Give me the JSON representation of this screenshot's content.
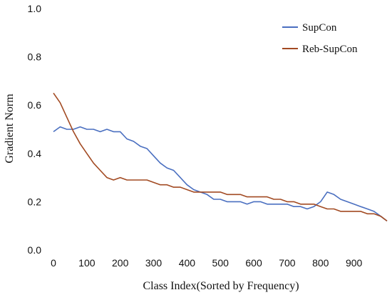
{
  "chart_data": {
    "type": "line",
    "title": "",
    "xlabel": "Class Index(Sorted by Frequency)",
    "ylabel": "Gradient Norm",
    "xlim": [
      0,
      999
    ],
    "ylim": [
      0.0,
      1.0
    ],
    "xticks": [
      0,
      100,
      200,
      300,
      400,
      500,
      600,
      700,
      800,
      900
    ],
    "yticks": [
      0.0,
      0.2,
      0.4,
      0.6,
      0.8,
      1.0
    ],
    "ytick_labels": [
      "0.0",
      "0.2",
      "0.4",
      "0.6",
      "0.8",
      "1.0"
    ],
    "grid": false,
    "legend_position": "top-right",
    "series": [
      {
        "name": "SupCon",
        "color": "#4a6fc0",
        "x": [
          0,
          20,
          40,
          60,
          80,
          100,
          120,
          140,
          160,
          180,
          200,
          220,
          240,
          260,
          280,
          300,
          320,
          340,
          360,
          380,
          400,
          420,
          440,
          460,
          480,
          500,
          520,
          540,
          560,
          580,
          600,
          620,
          640,
          660,
          680,
          700,
          720,
          740,
          760,
          780,
          800,
          820,
          840,
          860,
          880,
          900,
          920,
          940,
          960,
          980,
          999
        ],
        "y": [
          0.49,
          0.51,
          0.5,
          0.5,
          0.51,
          0.5,
          0.5,
          0.49,
          0.5,
          0.49,
          0.49,
          0.46,
          0.45,
          0.43,
          0.42,
          0.39,
          0.36,
          0.34,
          0.33,
          0.3,
          0.27,
          0.25,
          0.24,
          0.23,
          0.21,
          0.21,
          0.2,
          0.2,
          0.2,
          0.19,
          0.2,
          0.2,
          0.19,
          0.19,
          0.19,
          0.19,
          0.18,
          0.18,
          0.17,
          0.18,
          0.2,
          0.24,
          0.23,
          0.21,
          0.2,
          0.19,
          0.18,
          0.17,
          0.16,
          0.14,
          0.12
        ]
      },
      {
        "name": "Reb-SupCon",
        "color": "#a24a22",
        "x": [
          0,
          20,
          40,
          60,
          80,
          100,
          120,
          140,
          160,
          180,
          200,
          220,
          240,
          260,
          280,
          300,
          320,
          340,
          360,
          380,
          400,
          420,
          440,
          460,
          480,
          500,
          520,
          540,
          560,
          580,
          600,
          620,
          640,
          660,
          680,
          700,
          720,
          740,
          760,
          780,
          800,
          820,
          840,
          860,
          880,
          900,
          920,
          940,
          960,
          980,
          999
        ],
        "y": [
          0.65,
          0.61,
          0.55,
          0.49,
          0.44,
          0.4,
          0.36,
          0.33,
          0.3,
          0.29,
          0.3,
          0.29,
          0.29,
          0.29,
          0.29,
          0.28,
          0.27,
          0.27,
          0.26,
          0.26,
          0.25,
          0.24,
          0.24,
          0.24,
          0.24,
          0.24,
          0.23,
          0.23,
          0.23,
          0.22,
          0.22,
          0.22,
          0.22,
          0.21,
          0.21,
          0.2,
          0.2,
          0.19,
          0.19,
          0.19,
          0.18,
          0.17,
          0.17,
          0.16,
          0.16,
          0.16,
          0.16,
          0.15,
          0.15,
          0.14,
          0.12
        ]
      }
    ]
  }
}
